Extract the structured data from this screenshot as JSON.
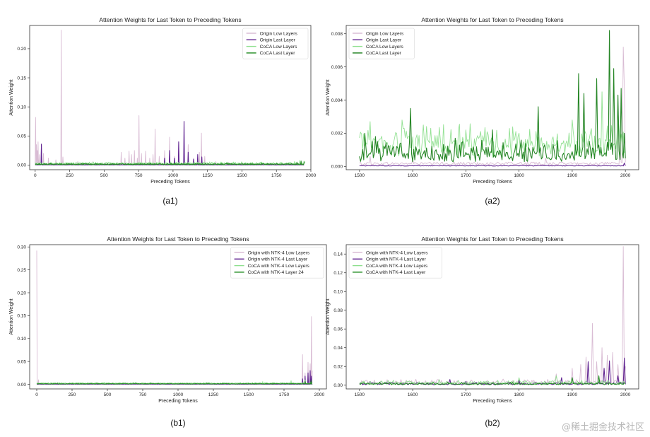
{
  "figure": {
    "watermark": "@稀土掘金技术社区"
  },
  "chart_data": [
    {
      "type": "line",
      "panel_label": "(a1)",
      "title": "Attention Weights for Last Token to Preceding Tokens",
      "xlabel": "Preceding Tokens",
      "ylabel": "Attention Weight",
      "xlim": [
        -40,
        2000
      ],
      "ylim": [
        -0.008,
        0.24
      ],
      "xticks": [
        0,
        250,
        500,
        750,
        1000,
        1250,
        1500,
        1750,
        2000
      ],
      "yticks": [
        0.0,
        0.05,
        0.1,
        0.15,
        0.2
      ],
      "ytick_labels": [
        "0.00",
        "0.05",
        "0.10",
        "0.15",
        "0.20"
      ],
      "legend_position": "top-right",
      "series": [
        {
          "name": "Origin Low Layers",
          "color": "#d7b8d2",
          "spikes": [
            [
              2,
              0.082
            ],
            [
              8,
              0.035
            ],
            [
              15,
              0.025
            ],
            [
              22,
              0.04
            ],
            [
              30,
              0.018
            ],
            [
              45,
              0.036
            ],
            [
              60,
              0.02
            ],
            [
              95,
              0.012
            ],
            [
              150,
              0.009
            ],
            [
              190,
              0.232
            ],
            [
              200,
              0.014
            ],
            [
              310,
              0.006
            ],
            [
              420,
              0.006
            ],
            [
              600,
              0.004
            ],
            [
              625,
              0.022
            ],
            [
              650,
              0.012
            ],
            [
              680,
              0.024
            ],
            [
              700,
              0.018
            ],
            [
              720,
              0.025
            ],
            [
              740,
              0.012
            ],
            [
              752,
              0.085
            ],
            [
              770,
              0.02
            ],
            [
              800,
              0.024
            ],
            [
              830,
              0.012
            ],
            [
              855,
              0.018
            ],
            [
              870,
              0.062
            ],
            [
              900,
              0.015
            ],
            [
              940,
              0.025
            ],
            [
              975,
              0.048
            ],
            [
              1010,
              0.015
            ],
            [
              1040,
              0.035
            ],
            [
              1080,
              0.015
            ],
            [
              1110,
              0.035
            ],
            [
              1150,
              0.012
            ],
            [
              1190,
              0.022
            ],
            [
              1205,
              0.055
            ],
            [
              1230,
              0.015
            ],
            [
              1310,
              0.006
            ],
            [
              1400,
              0.005
            ]
          ],
          "baseline": 0.002
        },
        {
          "name": "Origin Last Layer",
          "color": "#5a1a8c",
          "spikes": [
            [
              45,
              0.036
            ],
            [
              940,
              0.012
            ],
            [
              975,
              0.025
            ],
            [
              1010,
              0.012
            ],
            [
              1040,
              0.04
            ],
            [
              1080,
              0.075
            ],
            [
              1110,
              0.022
            ],
            [
              1150,
              0.01
            ],
            [
              1180,
              0.018
            ],
            [
              1210,
              0.014
            ]
          ],
          "baseline": 0.0005
        },
        {
          "name": "CoCA Low Layers",
          "color": "#8ddf8d",
          "spikes": [
            [
              1880,
              0.006
            ],
            [
              1920,
              0.008
            ],
            [
              1950,
              0.007
            ]
          ],
          "baseline": 0.002,
          "noise": 0.003
        },
        {
          "name": "CoCA Last Layer",
          "color": "#1f8a1f",
          "spikes": [
            [
              1900,
              0.005
            ],
            [
              1930,
              0.007
            ],
            [
              1955,
              0.006
            ]
          ],
          "baseline": 0.001,
          "noise": 0.002
        }
      ]
    },
    {
      "type": "line",
      "panel_label": "(a2)",
      "title": "Attention Weights for Last Token to Preceding Tokens",
      "xlabel": "Preceding Tokens",
      "ylabel": "Attention Weight",
      "xlim": [
        1475,
        2025
      ],
      "ylim": [
        -0.0002,
        0.0085
      ],
      "xticks": [
        1500,
        1600,
        1700,
        1800,
        1900,
        2000
      ],
      "yticks": [
        0.0,
        0.002,
        0.004,
        0.006,
        0.008
      ],
      "ytick_labels": [
        "0.000",
        "0.002",
        "0.004",
        "0.006",
        "0.008"
      ],
      "legend_position": "top-left",
      "series": [
        {
          "name": "Origin Low Layers",
          "color": "#d7b8d2",
          "spikes": [
            [
              1520,
              0.0006
            ],
            [
              1600,
              0.0004
            ],
            [
              1850,
              0.0005
            ],
            [
              1990,
              0.0015
            ],
            [
              1995,
              0.0072
            ],
            [
              1998,
              0.0048
            ]
          ],
          "baseline": 0.0002
        },
        {
          "name": "Origin Last Layer",
          "color": "#5a1a8c",
          "spikes": [
            [
              1997,
              0.0002
            ]
          ],
          "baseline": 5e-05
        },
        {
          "name": "CoCA Low Layers",
          "color": "#8ddf8d",
          "spikes": [
            [
              1520,
              0.0027
            ],
            [
              1580,
              0.0028
            ],
            [
              1620,
              0.0025
            ],
            [
              1700,
              0.0022
            ],
            [
              1800,
              0.0019
            ],
            [
              1900,
              0.0028
            ],
            [
              1955,
              0.0045
            ],
            [
              1985,
              0.0034
            ]
          ],
          "baseline": 0.0012,
          "noise": 0.0012
        },
        {
          "name": "CoCA Last Layer",
          "color": "#1a7f1a",
          "spikes": [
            [
              1510,
              0.002
            ],
            [
              1530,
              0.0018
            ],
            [
              1595,
              0.0035
            ],
            [
              1680,
              0.0017
            ],
            [
              1750,
              0.0022
            ],
            [
              1835,
              0.0036
            ],
            [
              1912,
              0.0056
            ],
            [
              1922,
              0.0044
            ],
            [
              1945,
              0.0053
            ],
            [
              1970,
              0.0082
            ],
            [
              1978,
              0.0059
            ],
            [
              1985,
              0.0043
            ],
            [
              1992,
              0.0047
            ],
            [
              1998,
              0.002
            ]
          ],
          "baseline": 0.0006,
          "noise": 0.0009
        }
      ]
    },
    {
      "type": "line",
      "panel_label": "(b1)",
      "title": "Attention Weights for Last Token to Preceding Tokens",
      "xlabel": "Preceding Tokens",
      "ylabel": "Attention Weight",
      "xlim": [
        -50,
        2050
      ],
      "ylim": [
        -0.01,
        0.305
      ],
      "xticks": [
        0,
        250,
        500,
        750,
        1000,
        1250,
        1500,
        1750,
        2000
      ],
      "yticks": [
        0.0,
        0.05,
        0.1,
        0.15,
        0.2,
        0.25,
        0.3
      ],
      "ytick_labels": [
        "0.00",
        "0.05",
        "0.10",
        "0.15",
        "0.20",
        "0.25",
        "0.30"
      ],
      "legend_position": "top-right",
      "series": [
        {
          "name": "Origin with NTK-4 Low Layers",
          "color": "#d7b8d2",
          "spikes": [
            [
              1,
              0.292
            ],
            [
              12,
              0.01
            ],
            [
              1880,
              0.065
            ],
            [
              1900,
              0.025
            ],
            [
              1920,
              0.048
            ],
            [
              1935,
              0.045
            ],
            [
              1945,
              0.148
            ],
            [
              1950,
              0.03
            ]
          ],
          "baseline": 0.002
        },
        {
          "name": "Origin with NTK-4 Last Layer",
          "color": "#5a1a8c",
          "spikes": [
            [
              1880,
              0.012
            ],
            [
              1900,
              0.018
            ],
            [
              1920,
              0.025
            ],
            [
              1935,
              0.03
            ],
            [
              1945,
              0.018
            ]
          ],
          "baseline": 0.0005
        },
        {
          "name": "CoCA with NTK-4 Low Layers",
          "color": "#8ddf8d",
          "spikes": [
            [
              1600,
              0.006
            ],
            [
              1800,
              0.008
            ],
            [
              1900,
              0.01
            ]
          ],
          "baseline": 0.002,
          "noise": 0.002
        },
        {
          "name": "CoCA with NTK-4 Layer 24",
          "color": "#1f8a1f",
          "spikes": [
            [
              1900,
              0.006
            ],
            [
              1940,
              0.008
            ]
          ],
          "baseline": 0.001,
          "noise": 0.0015
        }
      ]
    },
    {
      "type": "line",
      "panel_label": "(b2)",
      "title": "Attention Weights for Last Token to Preceding Tokens",
      "xlabel": "Preceding Tokens",
      "ylabel": "Attention Weight",
      "xlim": [
        1475,
        2025
      ],
      "ylim": [
        -0.004,
        0.15
      ],
      "xticks": [
        1500,
        1600,
        1700,
        1800,
        1900,
        2000
      ],
      "yticks": [
        0.0,
        0.02,
        0.04,
        0.06,
        0.08,
        0.1,
        0.12,
        0.14
      ],
      "ytick_labels": [
        "0.00",
        "0.02",
        "0.04",
        "0.06",
        "0.08",
        "0.10",
        "0.12",
        "0.14"
      ],
      "legend_position": "top-left",
      "series": [
        {
          "name": "Origin with NTK-4 Low Layers",
          "color": "#d7b8d2",
          "spikes": [
            [
              1870,
              0.012
            ],
            [
              1900,
              0.018
            ],
            [
              1915,
              0.022
            ],
            [
              1925,
              0.03
            ],
            [
              1937,
              0.066
            ],
            [
              1945,
              0.025
            ],
            [
              1955,
              0.04
            ],
            [
              1965,
              0.032
            ],
            [
              1975,
              0.035
            ],
            [
              1985,
              0.022
            ],
            [
              1995,
              0.148
            ],
            [
              1999,
              0.02
            ]
          ],
          "baseline": 0.002,
          "noise": 0.004
        },
        {
          "name": "Origin with NTK-4 Last Layer",
          "color": "#5a1a8c",
          "spikes": [
            [
              1520,
              0.004
            ],
            [
              1560,
              0.003
            ],
            [
              1670,
              0.006
            ],
            [
              1700,
              0.004
            ],
            [
              1800,
              0.005
            ],
            [
              1880,
              0.008
            ],
            [
              1930,
              0.025
            ],
            [
              1960,
              0.018
            ],
            [
              1970,
              0.026
            ],
            [
              1985,
              0.01
            ],
            [
              1997,
              0.029
            ]
          ],
          "baseline": 0.001,
          "noise": 0.002
        },
        {
          "name": "CoCA with NTK-4 Low Layers",
          "color": "#8ddf8d",
          "spikes": [
            [
              1650,
              0.006
            ],
            [
              1800,
              0.008
            ],
            [
              1870,
              0.01
            ]
          ],
          "baseline": 0.002,
          "noise": 0.003
        },
        {
          "name": "CoCA with NTK-4 Last Layer",
          "color": "#1f8a1f",
          "spikes": [
            [
              1900,
              0.008
            ],
            [
              1950,
              0.01
            ]
          ],
          "baseline": 0.001,
          "noise": 0.002
        }
      ]
    }
  ]
}
